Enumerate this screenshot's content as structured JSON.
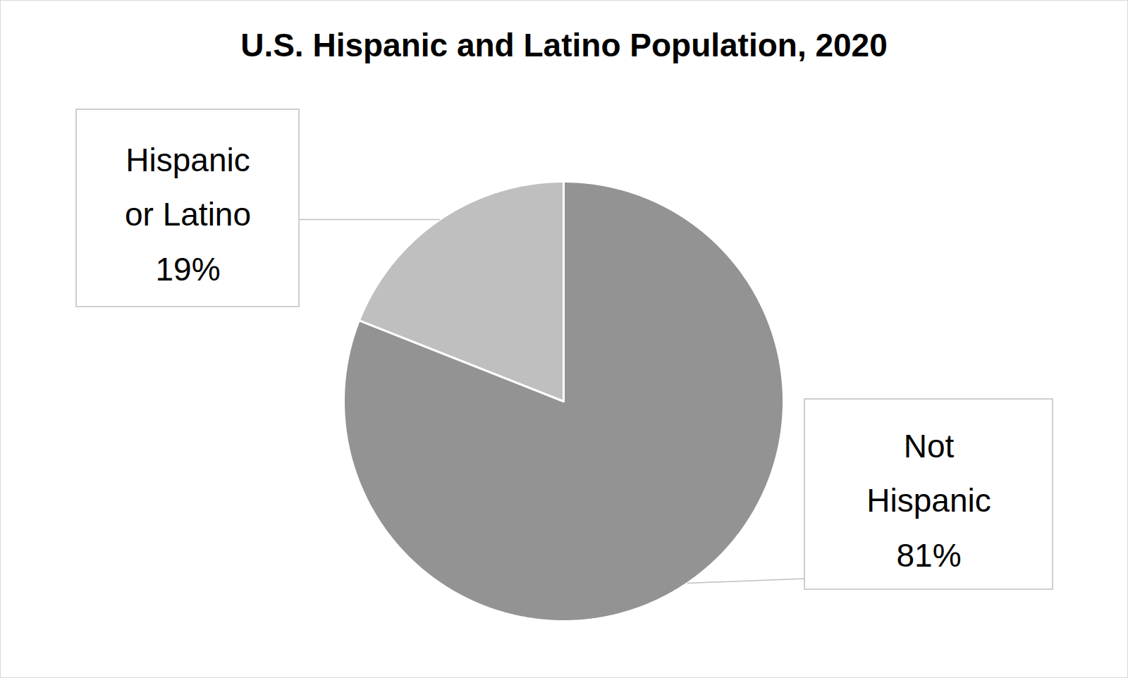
{
  "chart_data": {
    "type": "pie",
    "title": "U.S. Hispanic and Latino Population, 2020",
    "categories": [
      "Not Hispanic",
      "Hispanic or Latino"
    ],
    "values": [
      81,
      19
    ],
    "value_labels": [
      "81%",
      "19%"
    ],
    "colors": [
      "#939393",
      "#bfbfbf"
    ],
    "data_labels": true
  }
}
